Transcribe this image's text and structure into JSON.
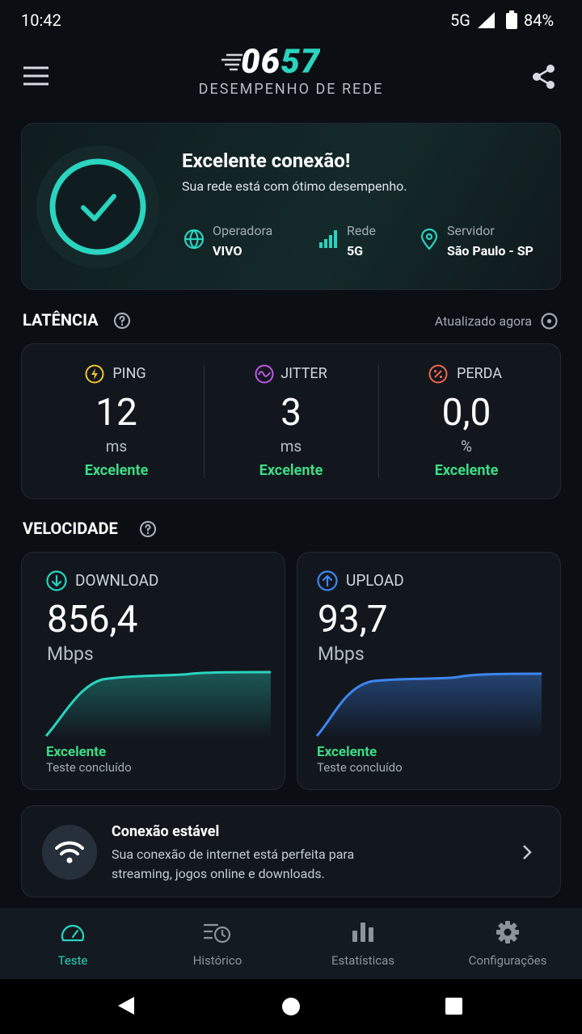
{
  "status_bar": {
    "time": "10:42",
    "network": "5G",
    "battery": "84%"
  },
  "header": {
    "logo": "0657",
    "subtitle": "DESEMPENHO DE REDE"
  },
  "status_card": {
    "title": "Excelente conexão!",
    "subtitle": "Sua rede está com ótimo desempenho.",
    "items": [
      {
        "label": "Operadora",
        "value": "VIVO"
      },
      {
        "label": "Rede",
        "value": "5G"
      },
      {
        "label": "Servidor",
        "value": "São Paulo - SP"
      }
    ]
  },
  "latency": {
    "title": "LATÊNCIA",
    "updated": "Atualizado agora",
    "metrics": [
      {
        "name": "PING",
        "value": "12",
        "unit": "ms",
        "rating": "Excelente"
      },
      {
        "name": "JITTER",
        "value": "3",
        "unit": "ms",
        "rating": "Excelente"
      },
      {
        "name": "PERDA",
        "value": "0,0",
        "unit": "%",
        "rating": "Excelente"
      }
    ]
  },
  "speed": {
    "title": "VELOCIDADE",
    "tests": [
      {
        "name": "DOWNLOAD",
        "value": "856,4",
        "unit": "Mbps",
        "rating": "Excelente",
        "status": "Teste concluído"
      },
      {
        "name": "UPLOAD",
        "value": "93,7",
        "unit": "Mbps",
        "rating": "Excelente",
        "status": "Teste concluído"
      }
    ]
  },
  "stability": {
    "title": "Conexão estável",
    "text": "Sua conexão de internet está perfeita para streaming, jogos online e downloads."
  },
  "nav": {
    "items": [
      "Teste",
      "Histórico",
      "Estatísticas",
      "Configurações"
    ]
  }
}
